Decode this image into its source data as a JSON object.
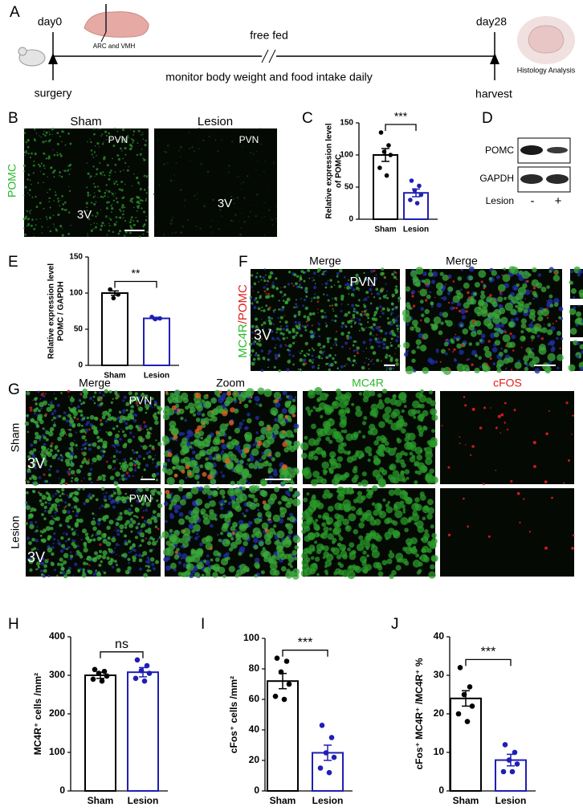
{
  "figure": {
    "panel_labels": [
      "A",
      "B",
      "C",
      "D",
      "E",
      "F",
      "G",
      "H",
      "I",
      "J"
    ],
    "timeline": {
      "start": "day0",
      "start_event": "surgery",
      "end": "day28",
      "end_event": "harvest",
      "phase": "free fed",
      "monitor": "monitor body weight and food intake daily",
      "target": "ARC and VMH",
      "analysis": "Histology Analysis"
    },
    "panel_b": {
      "columns": [
        "Sham",
        "Lesion"
      ],
      "region": "PVN",
      "ventricle": "3V",
      "stain": "POMC"
    },
    "panel_d": {
      "rows": [
        "POMC",
        "GAPDH"
      ],
      "group": "Lesion",
      "lanes": [
        "-",
        "+"
      ]
    },
    "panel_f": {
      "columns": [
        "Merge",
        "Merge"
      ],
      "region": "PVN",
      "ventricle": "3V",
      "stain_green": "MC4R",
      "stain_red": "/POMC"
    },
    "panel_g": {
      "columns": [
        "Merge",
        "Zoom",
        "MC4R",
        "cFOS"
      ],
      "rows": [
        "Sham",
        "Lesion"
      ],
      "region": "PVN",
      "ventricle": "3V"
    }
  },
  "chart_data": [
    {
      "type": "bar",
      "categories": [
        "Sham",
        "Lesion"
      ],
      "colors": [
        "#000000",
        "#1f1fb4"
      ],
      "values": [
        100,
        41
      ],
      "errors": [
        10,
        6
      ],
      "points": [
        [
          135,
          115,
          105,
          100,
          80,
          68
        ],
        [
          60,
          52,
          45,
          38,
          30,
          25
        ]
      ],
      "ylabel": [
        "Relative expression level",
        "of POMC"
      ],
      "ylim": [
        0,
        150
      ],
      "yticks": [
        0,
        50,
        100,
        150
      ],
      "annotation": "***"
    },
    {
      "type": "bar",
      "categories": [
        "Sham",
        "Lesion"
      ],
      "colors": [
        "#000000",
        "#1f1fb4"
      ],
      "values": [
        100,
        65
      ],
      "errors": [
        3,
        1.5
      ],
      "points": [
        [
          105,
          98,
          93
        ],
        [
          67,
          65,
          64
        ]
      ],
      "ylabel": [
        "Relative expression level",
        "POMC / GAPDH"
      ],
      "ylim": [
        0,
        150
      ],
      "yticks": [
        0,
        50,
        100,
        150
      ],
      "annotation": "**"
    },
    {
      "type": "bar",
      "categories": [
        "Sham",
        "Lesion"
      ],
      "colors": [
        "#000000",
        "#1f1fb4"
      ],
      "values": [
        300,
        308
      ],
      "errors": [
        8,
        12
      ],
      "points": [
        [
          315,
          310,
          305,
          298,
          290,
          285
        ],
        [
          340,
          325,
          312,
          305,
          292,
          285
        ]
      ],
      "ylabel": [
        "MC4R⁺ cells /mm²"
      ],
      "ylim": [
        0,
        400
      ],
      "yticks": [
        0,
        100,
        200,
        300,
        400
      ],
      "annotation": "ns"
    },
    {
      "type": "bar",
      "categories": [
        "Sham",
        "Lesion"
      ],
      "colors": [
        "#000000",
        "#1f1fb4"
      ],
      "values": [
        72,
        25
      ],
      "errors": [
        5,
        5
      ],
      "points": [
        [
          87,
          85,
          78,
          70,
          62,
          60
        ],
        [
          43,
          35,
          25,
          22,
          15,
          12
        ]
      ],
      "ylabel": [
        "cFos⁺ cells /mm²"
      ],
      "ylim": [
        0,
        100
      ],
      "yticks": [
        0,
        20,
        40,
        60,
        80,
        100
      ],
      "annotation": "***"
    },
    {
      "type": "bar",
      "categories": [
        "Sham",
        "Lesion"
      ],
      "colors": [
        "#000000",
        "#1f1fb4"
      ],
      "values": [
        24,
        8
      ],
      "errors": [
        2,
        1.5
      ],
      "points": [
        [
          32,
          27,
          25,
          22,
          20,
          18
        ],
        [
          12,
          10,
          8,
          7,
          5,
          5
        ]
      ],
      "ylabel": [
        "cFos⁺ MC4R⁺ /MC4R⁺ %"
      ],
      "ylim": [
        0,
        40
      ],
      "yticks": [
        0,
        10,
        20,
        30,
        40
      ],
      "annotation": "***"
    }
  ]
}
